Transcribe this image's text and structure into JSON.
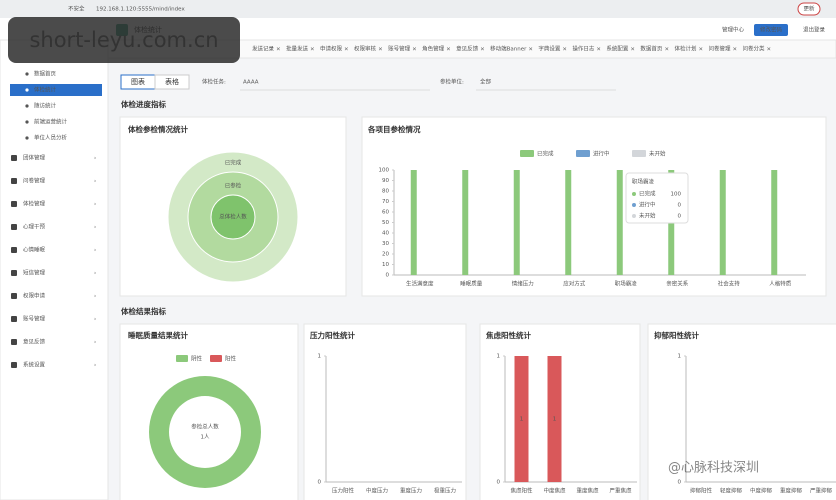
{
  "browser": {
    "security": "不安全",
    "url": "192.168.1.120:5555/mind/index",
    "update": "更新"
  },
  "watermark": "short-leyu.com.cn",
  "corner_watermark": "@心脉科技深圳",
  "header": {
    "page_tab": "体检统计",
    "links": [
      "管理中心",
      "修改密码",
      "退出登录"
    ]
  },
  "tabs": [
    "发送记录",
    "批量发送",
    "申请权限",
    "权限审核",
    "账号管理",
    "角色管理",
    "意见反馈",
    "移动端Banner",
    "字典设置",
    "操作日志",
    "系统配置",
    "数据首页",
    "体检计划",
    "问卷管理",
    "问卷分类"
  ],
  "sidebar": {
    "items": [
      "数据首页",
      "体检统计",
      "随访统计",
      "前端运营统计",
      "单位人员分析"
    ],
    "active": 1,
    "groups": [
      "团体管理",
      "问卷管理",
      "体检管理",
      "心理干预",
      "心情睡眠",
      "短信管理",
      "权限申请",
      "账号管理",
      "意见反馈",
      "系统设置"
    ]
  },
  "toolbar": {
    "views": [
      "图表",
      "表格"
    ],
    "task_label": "体检任务:",
    "task": "AAAA",
    "unit_label": "参检单位:",
    "unit": "全部"
  },
  "sections": [
    "体检进度指标",
    "体检结果指标"
  ],
  "participation": {
    "title": "体检参检情况统计",
    "rings": [
      "已完成",
      "已参检",
      "总体检人数"
    ]
  },
  "project_chart": {
    "type": "bar",
    "title": "各项目参检情况",
    "categories": [
      "生活满意度",
      "睡眠质量",
      "情绪压力",
      "应对方式",
      "职场霸凌",
      "亲密关系",
      "社会支持",
      "人格特质"
    ],
    "series": [
      {
        "name": "已完成",
        "color": "#8cc97b",
        "values": [
          100,
          100,
          100,
          100,
          100,
          100,
          100,
          100
        ]
      },
      {
        "name": "进行中",
        "color": "#6f9fd0",
        "values": [
          0,
          0,
          0,
          0,
          0,
          0,
          0,
          0
        ]
      },
      {
        "name": "未开始",
        "color": "#d3d6da",
        "values": [
          0,
          0,
          0,
          0,
          0,
          0,
          0,
          0
        ]
      }
    ],
    "ylim": [
      0,
      100
    ],
    "yticks": [
      0,
      10,
      20,
      30,
      40,
      50,
      60,
      70,
      80,
      90,
      100
    ],
    "grid": false,
    "tooltip_index": 4
  },
  "sleep": {
    "title": "睡眠质量结果统计",
    "type": "donut",
    "series": [
      {
        "name": "阴性",
        "color": "#8cc97b",
        "value": 1
      },
      {
        "name": "阳性",
        "color": "#d9585a",
        "value": 0
      }
    ],
    "center_label": "参检总人数",
    "center_value": "1人"
  },
  "stress": {
    "type": "bar",
    "title": "压力阳性统计",
    "categories": [
      "压力阳性",
      "中度压力",
      "重度压力",
      "极重压力"
    ],
    "values": [
      0,
      0,
      0,
      0
    ],
    "color": "#d9585a",
    "ylim": [
      0,
      1
    ],
    "yticks": [
      0,
      1
    ]
  },
  "anxiety": {
    "type": "bar",
    "title": "焦虑阳性统计",
    "categories": [
      "焦虑阳性",
      "中度焦虑",
      "重度焦虑",
      "严重焦虑"
    ],
    "values": [
      1,
      1,
      0,
      0
    ],
    "color": "#d9585a",
    "ylim": [
      0,
      1
    ],
    "yticks": [
      0,
      1
    ]
  },
  "depression": {
    "type": "bar",
    "title": "抑郁阳性统计",
    "categories": [
      "抑郁阳性",
      "轻度抑郁",
      "中度抑郁",
      "重度抑郁",
      "严重抑郁"
    ],
    "values": [
      0,
      0,
      0,
      0,
      0
    ],
    "color": "#d9585a",
    "ylim": [
      0,
      1
    ],
    "yticks": [
      0,
      1
    ]
  }
}
